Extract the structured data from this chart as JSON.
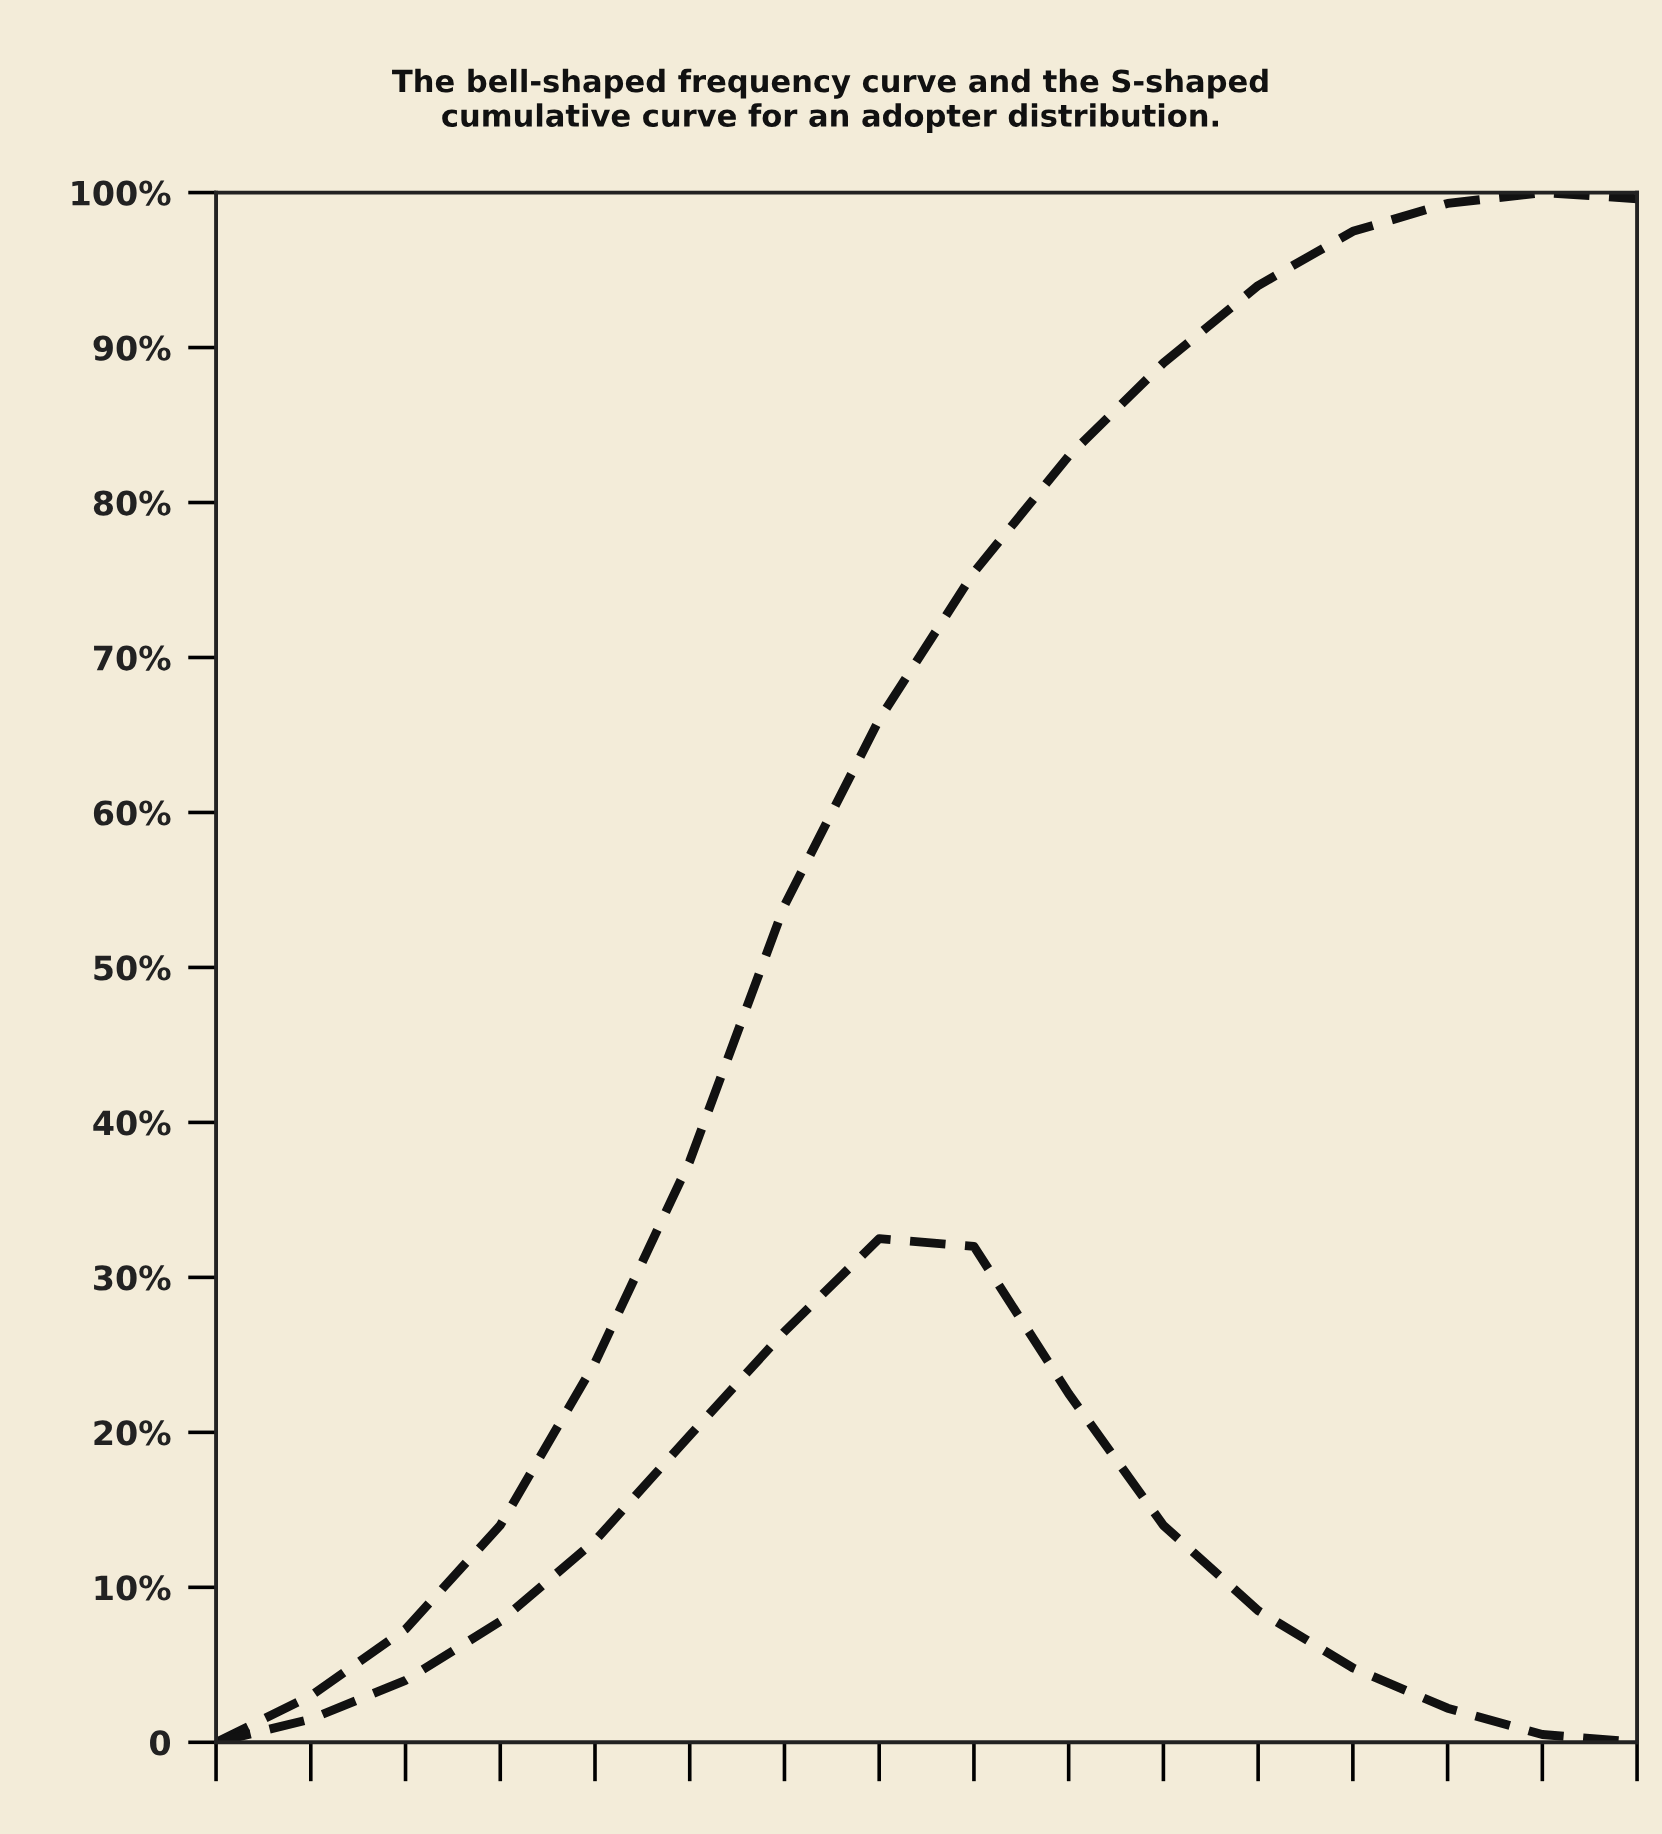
{
  "chart_data": {
    "type": "line",
    "title": "The bell-shaped frequency curve and the S-shaped\ncumulative curve for an adopter distribution.",
    "categories": [
      null,
      null,
      null,
      null,
      null,
      null,
      null,
      null,
      null,
      null,
      null,
      null,
      null,
      null,
      null,
      null
    ],
    "ylim": [
      0,
      100
    ],
    "yticks": [
      {
        "value": 0,
        "label": "0"
      },
      {
        "value": 10,
        "label": "10%"
      },
      {
        "value": 20,
        "label": "20%"
      },
      {
        "value": 30,
        "label": "30%"
      },
      {
        "value": 40,
        "label": "40%"
      },
      {
        "value": 50,
        "label": "50%"
      },
      {
        "value": 60,
        "label": "60%"
      },
      {
        "value": 70,
        "label": "70%"
      },
      {
        "value": 80,
        "label": "80%"
      },
      {
        "value": 90,
        "label": "90%"
      },
      {
        "value": 100,
        "label": "100%"
      }
    ],
    "tick_labels": "y",
    "grid": false,
    "legend": false,
    "line_style": "dashed",
    "marker": "none",
    "series": [
      {
        "color": "#111111",
        "values": [
          0,
          3,
          7.3,
          14,
          24.5,
          37.5,
          54,
          66,
          75.5,
          83,
          89,
          94,
          97.5,
          99.3,
          100,
          99.6
        ]
      },
      {
        "color": "#111111",
        "values": [
          0,
          1.5,
          4,
          7.8,
          13,
          19.8,
          26.5,
          32.5,
          32,
          22.5,
          14,
          8.5,
          4.8,
          2.2,
          0.5,
          0
        ]
      }
    ]
  }
}
